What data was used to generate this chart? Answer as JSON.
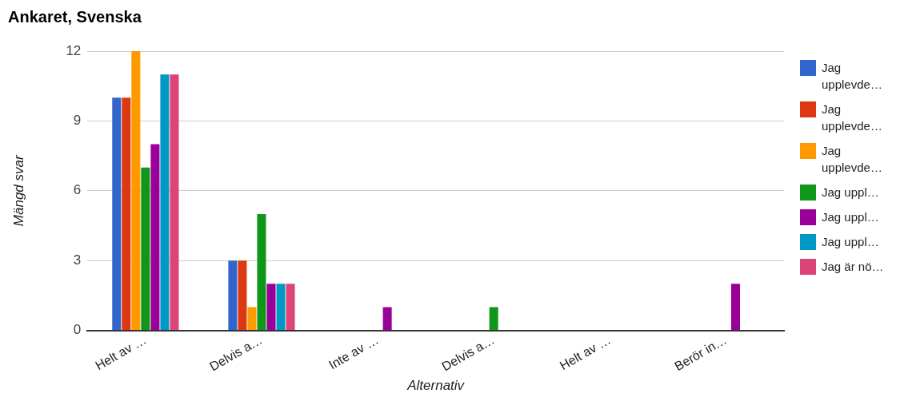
{
  "chart_data": {
    "type": "bar",
    "title": "Ankaret, Svenska",
    "xlabel": "Alternativ",
    "ylabel": "Mängd svar",
    "categories": [
      "Helt av …",
      "Delvis a…",
      "Inte av …",
      "Delvis a…",
      "Helt av …",
      "Berör in…"
    ],
    "series": [
      {
        "name": "Jag upplevde…",
        "color": "#3366cc",
        "values": [
          10,
          3,
          0,
          0,
          0,
          0
        ]
      },
      {
        "name": "Jag upplevde…",
        "color": "#dc3912",
        "values": [
          10,
          3,
          0,
          0,
          0,
          0
        ]
      },
      {
        "name": "Jag upplevde…",
        "color": "#ff9900",
        "values": [
          12,
          1,
          0,
          0,
          0,
          0
        ]
      },
      {
        "name": "Jag uppl…",
        "color": "#109618",
        "values": [
          7,
          5,
          0,
          1,
          0,
          0
        ]
      },
      {
        "name": "Jag uppl…",
        "color": "#990099",
        "values": [
          8,
          2,
          1,
          0,
          0,
          2
        ]
      },
      {
        "name": "Jag uppl…",
        "color": "#0099c6",
        "values": [
          11,
          2,
          0,
          0,
          0,
          0
        ]
      },
      {
        "name": "Jag är nö…",
        "color": "#dd4477",
        "values": [
          11,
          2,
          0,
          0,
          0,
          0
        ]
      }
    ],
    "ylim": [
      0,
      12
    ],
    "yticks": [
      0,
      3,
      6,
      9,
      12
    ],
    "grid": "y",
    "legend": "right"
  }
}
